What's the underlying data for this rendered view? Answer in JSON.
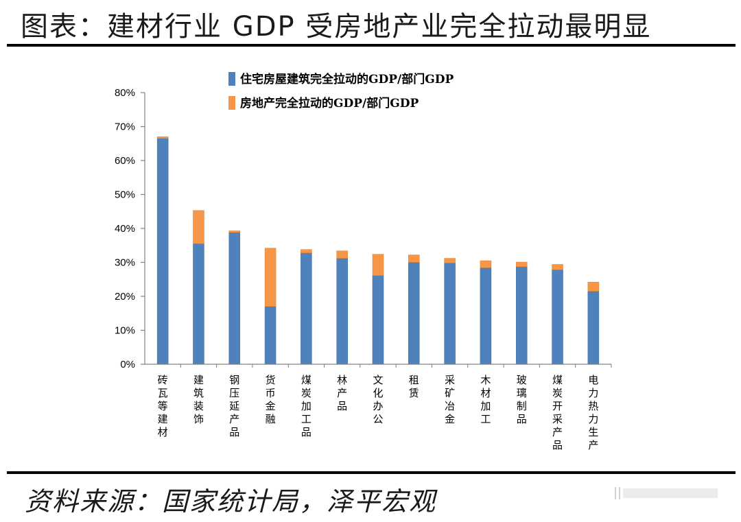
{
  "header": {
    "title": "图表：建材行业 GDP 受房地产业完全拉动最明显"
  },
  "footer": {
    "source": "资料来源：国家统计局，泽平宏观"
  },
  "chart_data": {
    "type": "bar",
    "stacked": true,
    "categories": [
      "砖瓦等建材",
      "建筑装饰",
      "钢压延产品",
      "货币金融",
      "煤炭加工品",
      "林产品",
      "文化办公",
      "租赁",
      "采矿冶金",
      "木材加工",
      "玻璃制品",
      "煤炭开采产品",
      "电力热力生产"
    ],
    "series": [
      {
        "name": "住宅房屋建筑完全拉动的GDP/部门GDP",
        "color": "#4f81bd",
        "values": [
          66.5,
          35.5,
          38.8,
          17.0,
          32.8,
          31.2,
          26.1,
          30.0,
          29.8,
          28.4,
          28.7,
          27.8,
          21.5
        ]
      },
      {
        "name": "房地产完全拉动的GDP/部门GDP",
        "color": "#f79646",
        "values": [
          0.5,
          9.8,
          0.5,
          17.2,
          1.0,
          2.2,
          6.3,
          2.2,
          1.4,
          2.1,
          1.4,
          1.6,
          2.7
        ]
      }
    ],
    "y_ticks": [
      "0%",
      "10%",
      "20%",
      "30%",
      "40%",
      "50%",
      "60%",
      "70%",
      "80%"
    ],
    "ylim": [
      0,
      80
    ],
    "legend": "top",
    "grid": false
  }
}
